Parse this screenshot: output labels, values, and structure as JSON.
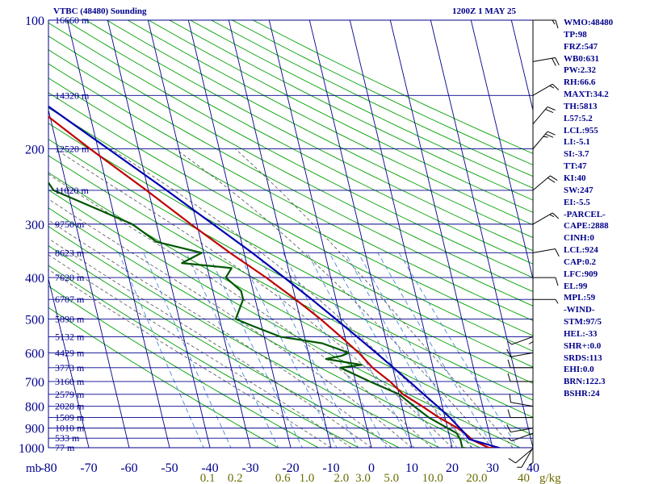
{
  "header": {
    "title": "VTBC (48480) Sounding",
    "time": "1200Z  1 MAY 25"
  },
  "colors": {
    "grid": "#00008b",
    "dry_adiabat": "#00a000",
    "moist_adiabat": "#505050",
    "mixing_ratio": "#4a8bd6",
    "temperature": "#c00000",
    "dewpoint": "#005500",
    "parcel": "#0000b0",
    "wind": "#000000",
    "text": "#00008b",
    "mr_text": "#6b6b00"
  },
  "indices": [
    "WMO:48480",
    "TP:98",
    "FRZ:547",
    "WB0:631",
    "PW:2.32",
    "RH:66.6",
    "MAXT:34.2",
    "TH:5813",
    "L57:5.2",
    "LCL:955",
    "LI:-5.1",
    "SI:-3.7",
    "TT:47",
    "KI:40",
    "SW:247",
    "EI:-5.5",
    "-PARCEL-",
    "CAPE:2888",
    "CINH:0",
    "LCL:924",
    "CAP:0.2",
    "LFC:909",
    "EL:99",
    "MPL:59",
    "-WIND-",
    "STM:97/5",
    "HEL:-33",
    "SHR+:0.0",
    "SRDS:113",
    "EHI:0.0",
    "BRN:122.3",
    "BSHR:24"
  ],
  "chart_data": {
    "type": "line",
    "title": "VTBC (48480) Sounding",
    "subtitle": "1200Z  1 MAY 25",
    "x_unit_label": "mb",
    "y_scale": "log",
    "ylim": [
      1000,
      100
    ],
    "xlim": [
      -80,
      40
    ],
    "pressure_ticks": [
      "100",
      "200",
      "300",
      "400",
      "500",
      "600",
      "700",
      "800",
      "900",
      "1000"
    ],
    "temperature_ticks": [
      "-80",
      "-70",
      "-60",
      "-50",
      "-40",
      "-30",
      "-20",
      "-10",
      "0",
      "10",
      "20",
      "30",
      "40"
    ],
    "mixing_ratio_labels": [
      "0.1",
      "0.2",
      "0.6",
      "1.0",
      "2.0",
      "3.0",
      "5.0",
      "10.0",
      "20.0",
      "40"
    ],
    "mixing_ratio_unit": "g/kg",
    "heights": [
      {
        "p": 100,
        "label": "16660 m"
      },
      {
        "p": 150,
        "label": "14320 m"
      },
      {
        "p": 200,
        "label": "12520 m"
      },
      {
        "p": 250,
        "label": "11020 m"
      },
      {
        "p": 300,
        "label": "9750 m"
      },
      {
        "p": 350,
        "label": "8623 m"
      },
      {
        "p": 400,
        "label": "7620 m"
      },
      {
        "p": 450,
        "label": "6707 m"
      },
      {
        "p": 500,
        "label": "5890 m"
      },
      {
        "p": 550,
        "label": "5132 m"
      },
      {
        "p": 600,
        "label": "4429 m"
      },
      {
        "p": 650,
        "label": "3773 m"
      },
      {
        "p": 700,
        "label": "3160 m"
      },
      {
        "p": 750,
        "label": "2579 m"
      },
      {
        "p": 800,
        "label": "2028 m"
      },
      {
        "p": 850,
        "label": "1509 m"
      },
      {
        "p": 900,
        "label": "1010 m"
      },
      {
        "p": 950,
        "label": "533 m"
      },
      {
        "p": 1000,
        "label": "77 m"
      }
    ],
    "series": [
      {
        "name": "",
        "role": "temperature",
        "points": [
          [
            1004,
            32.1
          ],
          [
            1000,
            29.0
          ],
          [
            960,
            25.5
          ],
          [
            925,
            24.0
          ],
          [
            900,
            22.5
          ],
          [
            850,
            18.5
          ],
          [
            800,
            15.0
          ],
          [
            750,
            11.0
          ],
          [
            700,
            8.5
          ],
          [
            650,
            5.0
          ],
          [
            600,
            2.5
          ],
          [
            550,
            -1.0
          ],
          [
            500,
            -5.0
          ],
          [
            450,
            -10.0
          ],
          [
            400,
            -16.0
          ],
          [
            350,
            -23.5
          ],
          [
            300,
            -31.5
          ],
          [
            250,
            -40.5
          ],
          [
            200,
            -52.0
          ],
          [
            150,
            -66.0
          ],
          [
            120,
            -75.0
          ],
          [
            100,
            -78.5
          ]
        ]
      },
      {
        "name": "",
        "role": "dewpoint",
        "points": [
          [
            1004,
            24.0
          ],
          [
            1000,
            22.5
          ],
          [
            960,
            22.5
          ],
          [
            925,
            22.0
          ],
          [
            900,
            20.0
          ],
          [
            850,
            16.0
          ],
          [
            800,
            13.0
          ],
          [
            750,
            10.0
          ],
          [
            700,
            3.5
          ],
          [
            650,
            -3.0
          ],
          [
            640,
            2.5
          ],
          [
            620,
            -6.0
          ],
          [
            610,
            -2.0
          ],
          [
            600,
            0.0
          ],
          [
            570,
            -6.0
          ],
          [
            550,
            -16.0
          ],
          [
            520,
            -22.0
          ],
          [
            500,
            -26.0
          ],
          [
            450,
            -23.0
          ],
          [
            430,
            -23.0
          ],
          [
            400,
            -26.0
          ],
          [
            380,
            -24.0
          ],
          [
            370,
            -36.0
          ],
          [
            350,
            -30.5
          ],
          [
            330,
            -41.0
          ],
          [
            300,
            -46.0
          ],
          [
            250,
            -63.5
          ],
          [
            220,
            -66.0
          ],
          [
            200,
            -70.0
          ],
          [
            190,
            -66.0
          ],
          [
            175,
            -79.0
          ],
          [
            165,
            -70.0
          ],
          [
            150,
            -80.0
          ],
          [
            130,
            -82.0
          ],
          [
            115,
            -84.0
          ]
        ]
      },
      {
        "name": "",
        "role": "parcel",
        "points": [
          [
            1004,
            32.1
          ],
          [
            955,
            24.7
          ],
          [
            924,
            23.9
          ],
          [
            850,
            21.2
          ],
          [
            800,
            18.8
          ],
          [
            750,
            16.1
          ],
          [
            700,
            13.3
          ],
          [
            650,
            10.2
          ],
          [
            600,
            6.8
          ],
          [
            550,
            3.0
          ],
          [
            500,
            -1.2
          ],
          [
            450,
            -6.0
          ],
          [
            400,
            -11.5
          ],
          [
            350,
            -18.0
          ],
          [
            300,
            -26.0
          ],
          [
            250,
            -35.5
          ],
          [
            200,
            -47.5
          ],
          [
            150,
            -63.0
          ],
          [
            120,
            -72.0
          ],
          [
            100,
            -78.5
          ]
        ]
      }
    ],
    "wind_barbs": [
      {
        "p": 1004,
        "dir": 230,
        "kt": 10
      },
      {
        "p": 1000,
        "dir": 210,
        "kt": 5
      },
      {
        "p": 960,
        "dir": 180,
        "kt": 5
      },
      {
        "p": 925,
        "dir": 250,
        "kt": 5
      },
      {
        "p": 900,
        "dir": 260,
        "kt": 10
      },
      {
        "p": 850,
        "dir": 270,
        "kt": 10
      },
      {
        "p": 800,
        "dir": 280,
        "kt": 10
      },
      {
        "p": 700,
        "dir": 270,
        "kt": 10
      },
      {
        "p": 650,
        "dir": 270,
        "kt": 10
      },
      {
        "p": 600,
        "dir": 260,
        "kt": 10
      },
      {
        "p": 550,
        "dir": 250,
        "kt": 5
      },
      {
        "p": 500,
        "dir": 180,
        "kt": 5
      },
      {
        "p": 450,
        "dir": 90,
        "kt": 5
      },
      {
        "p": 400,
        "dir": 90,
        "kt": 10
      },
      {
        "p": 350,
        "dir": 80,
        "kt": 10
      },
      {
        "p": 300,
        "dir": 60,
        "kt": 15
      },
      {
        "p": 250,
        "dir": 50,
        "kt": 20
      },
      {
        "p": 200,
        "dir": 40,
        "kt": 25
      },
      {
        "p": 175,
        "dir": 40,
        "kt": 20
      },
      {
        "p": 150,
        "dir": 60,
        "kt": 15
      },
      {
        "p": 125,
        "dir": 80,
        "kt": 20
      },
      {
        "p": 100,
        "dir": 90,
        "kt": 15
      }
    ],
    "grid": true,
    "legend": "none"
  }
}
